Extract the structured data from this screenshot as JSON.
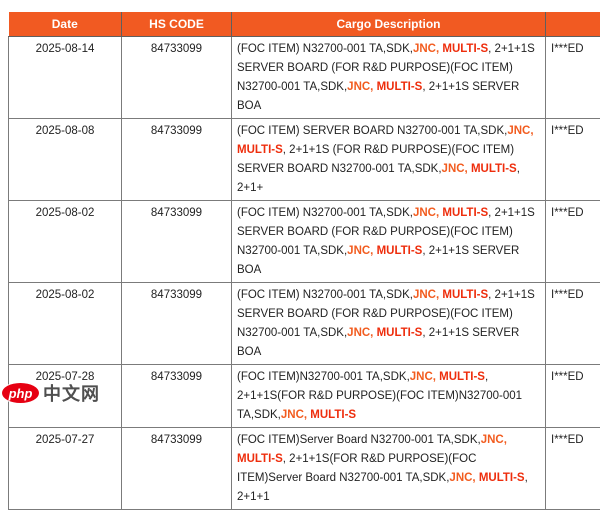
{
  "colors": {
    "header_bg": "#F15A22",
    "header_text": "#FFFFFF",
    "jnc_highlight": "#F25C1F",
    "multis_highlight": "#EE2D0C",
    "body_text": "#222222",
    "border": "#7B7B7B",
    "logo_red": "#E60012",
    "logo_gray": "#4F4F4F"
  },
  "table": {
    "columns": [
      {
        "label": "Date"
      },
      {
        "label": "HS CODE"
      },
      {
        "label": "Cargo Description"
      },
      {
        "label": ""
      }
    ],
    "rows": [
      {
        "date": "2025-08-14",
        "hs_code": "84733099",
        "masked": "I***ED",
        "description": [
          {
            "text": "(FOC ITEM) N32700-001 TA,SDK,",
            "style": "normal"
          },
          {
            "text": "JNC,",
            "style": "jnc"
          },
          {
            "text": " ",
            "style": "normal"
          },
          {
            "text": "MULTI-S",
            "style": "multis"
          },
          {
            "text": ", 2+1+1S SERVER BOARD (FOR R&D PURPOSE)(FOC ITEM) N32700-001 TA,SDK,",
            "style": "normal"
          },
          {
            "text": "JNC,",
            "style": "jnc"
          },
          {
            "text": " ",
            "style": "normal"
          },
          {
            "text": "MULTI-S",
            "style": "multis"
          },
          {
            "text": ", 2+1+1S SERVER BOA",
            "style": "normal"
          }
        ]
      },
      {
        "date": "2025-08-08",
        "hs_code": "84733099",
        "masked": "I***ED",
        "description": [
          {
            "text": "(FOC ITEM) SERVER BOARD N32700-001 TA,SDK,",
            "style": "normal"
          },
          {
            "text": "JNC,",
            "style": "jnc"
          },
          {
            "text": " ",
            "style": "normal"
          },
          {
            "text": "MULTI-S",
            "style": "multis"
          },
          {
            "text": ", 2+1+1S (FOR R&D PURPOSE)(FOC ITEM) SERVER BOARD N32700-001 TA,SDK,",
            "style": "normal"
          },
          {
            "text": "JNC,",
            "style": "jnc"
          },
          {
            "text": " ",
            "style": "normal"
          },
          {
            "text": "MULTI-S",
            "style": "multis"
          },
          {
            "text": ", 2+1+",
            "style": "normal"
          }
        ]
      },
      {
        "date": "2025-08-02",
        "hs_code": "84733099",
        "masked": "I***ED",
        "description": [
          {
            "text": "(FOC ITEM) N32700-001 TA,SDK,",
            "style": "normal"
          },
          {
            "text": "JNC,",
            "style": "jnc"
          },
          {
            "text": " ",
            "style": "normal"
          },
          {
            "text": "MULTI-S",
            "style": "multis"
          },
          {
            "text": ", 2+1+1S SERVER BOARD (FOR R&D PURPOSE)(FOC ITEM) N32700-001 TA,SDK,",
            "style": "normal"
          },
          {
            "text": "JNC,",
            "style": "jnc"
          },
          {
            "text": " ",
            "style": "normal"
          },
          {
            "text": "MULTI-S",
            "style": "multis"
          },
          {
            "text": ", 2+1+1S SERVER BOA",
            "style": "normal"
          }
        ]
      },
      {
        "date": "2025-08-02",
        "hs_code": "84733099",
        "masked": "I***ED",
        "description": [
          {
            "text": "(FOC ITEM) N32700-001 TA,SDK,",
            "style": "normal"
          },
          {
            "text": "JNC,",
            "style": "jnc"
          },
          {
            "text": " ",
            "style": "normal"
          },
          {
            "text": "MULTI-S",
            "style": "multis"
          },
          {
            "text": ", 2+1+1S SERVER BOARD (FOR R&D PURPOSE)(FOC ITEM) N32700-001 TA,SDK,",
            "style": "normal"
          },
          {
            "text": "JNC,",
            "style": "jnc"
          },
          {
            "text": " ",
            "style": "normal"
          },
          {
            "text": "MULTI-S",
            "style": "multis"
          },
          {
            "text": ", 2+1+1S SERVER BOA",
            "style": "normal"
          }
        ]
      },
      {
        "date": "2025-07-28",
        "hs_code": "84733099",
        "masked": "I***ED",
        "description": [
          {
            "text": "(FOC ITEM)N32700-001 TA,SDK,",
            "style": "normal"
          },
          {
            "text": "JNC,",
            "style": "jnc"
          },
          {
            "text": " ",
            "style": "normal"
          },
          {
            "text": "MULTI-S",
            "style": "multis"
          },
          {
            "text": ", 2+1+1S(FOR R&D PURPOSE)(FOC ITEM)N32700-001 TA,SDK,",
            "style": "normal"
          },
          {
            "text": "JNC,",
            "style": "jnc"
          },
          {
            "text": " ",
            "style": "normal"
          },
          {
            "text": "MULTI-S",
            "style": "multis"
          }
        ]
      },
      {
        "date": "2025-07-27",
        "hs_code": "84733099",
        "masked": "I***ED",
        "description": [
          {
            "text": "(FOC ITEM)Server Board N32700-001 TA,SDK,",
            "style": "normal"
          },
          {
            "text": "JNC,",
            "style": "jnc"
          },
          {
            "text": " ",
            "style": "normal"
          },
          {
            "text": "MULTI-S",
            "style": "multis"
          },
          {
            "text": ", 2+1+1S(FOR R&D PURPOSE)(FOC ITEM)Server Board N32700-001 TA,SDK,",
            "style": "normal"
          },
          {
            "text": "JNC,",
            "style": "jnc"
          },
          {
            "text": " ",
            "style": "normal"
          },
          {
            "text": "MULTI-S",
            "style": "multis"
          },
          {
            "text": ", 2+1+1",
            "style": "normal"
          }
        ]
      }
    ]
  },
  "watermark": {
    "php": "php",
    "cn": "中文网"
  }
}
